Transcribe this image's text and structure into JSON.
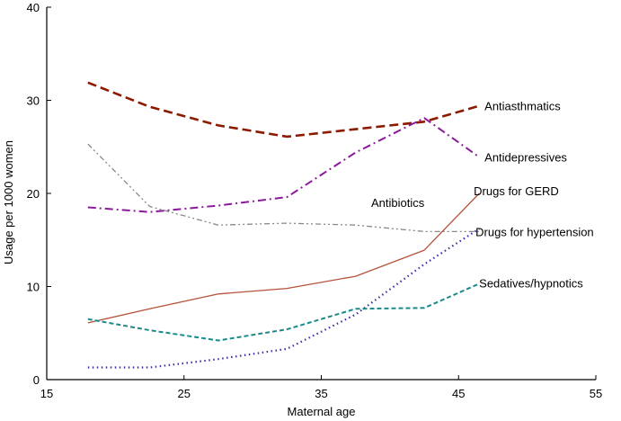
{
  "chart_data": {
    "type": "line",
    "xlabel": "Maternal age",
    "ylabel": "Usage per 1000 women",
    "xlim": [
      15,
      55
    ],
    "ylim": [
      0,
      40
    ],
    "xticks": [
      15,
      25,
      35,
      45,
      55
    ],
    "yticks": [
      0,
      10,
      20,
      30,
      40
    ],
    "grid": false,
    "series": [
      {
        "name": "Antiasthmatics",
        "color": "#8b1a00",
        "dash": "long-dash",
        "x": [
          18,
          22.5,
          27.5,
          32.5,
          37.5,
          42.5,
          46.5
        ],
        "y": [
          31.9,
          29.3,
          27.3,
          26.1,
          26.9,
          27.7,
          29.4
        ]
      },
      {
        "name": "Antidepressives",
        "color": "#8b1a9b",
        "dash": "dash-dot",
        "x": [
          18,
          22.5,
          27.5,
          32.5,
          37.5,
          42.5,
          46.5
        ],
        "y": [
          18.5,
          18.0,
          18.7,
          19.6,
          24.4,
          28.1,
          23.9
        ]
      },
      {
        "name": "Antibiotics",
        "color": "#888888",
        "dash": "dash-dot-dot",
        "x": [
          18,
          22.5,
          27.5,
          32.5,
          37.5,
          42.5,
          46.5
        ],
        "y": [
          25.3,
          18.6,
          16.6,
          16.8,
          16.6,
          15.9,
          15.9
        ]
      },
      {
        "name": "Drugs for GERD",
        "color": "#b5523b",
        "dash": "solid",
        "x": [
          18,
          22.5,
          27.5,
          32.5,
          37.5,
          42.5,
          46.5
        ],
        "y": [
          6.1,
          7.6,
          9.2,
          9.8,
          11.1,
          13.9,
          20.0
        ]
      },
      {
        "name": "Drugs for hypertension",
        "color": "#3b2faa",
        "dash": "dotted",
        "x": [
          18,
          22.5,
          27.5,
          32.5,
          37.5,
          42.5,
          46.5
        ],
        "y": [
          1.3,
          1.3,
          2.2,
          3.3,
          7.0,
          12.4,
          16.2
        ]
      },
      {
        "name": "Sedatives/hypnotics",
        "color": "#1a8b8b",
        "dash": "short-dash",
        "x": [
          18,
          22.5,
          27.5,
          32.5,
          37.5,
          42.5,
          46.5
        ],
        "y": [
          6.5,
          5.3,
          4.2,
          5.4,
          7.6,
          7.7,
          10.3
        ]
      }
    ]
  }
}
